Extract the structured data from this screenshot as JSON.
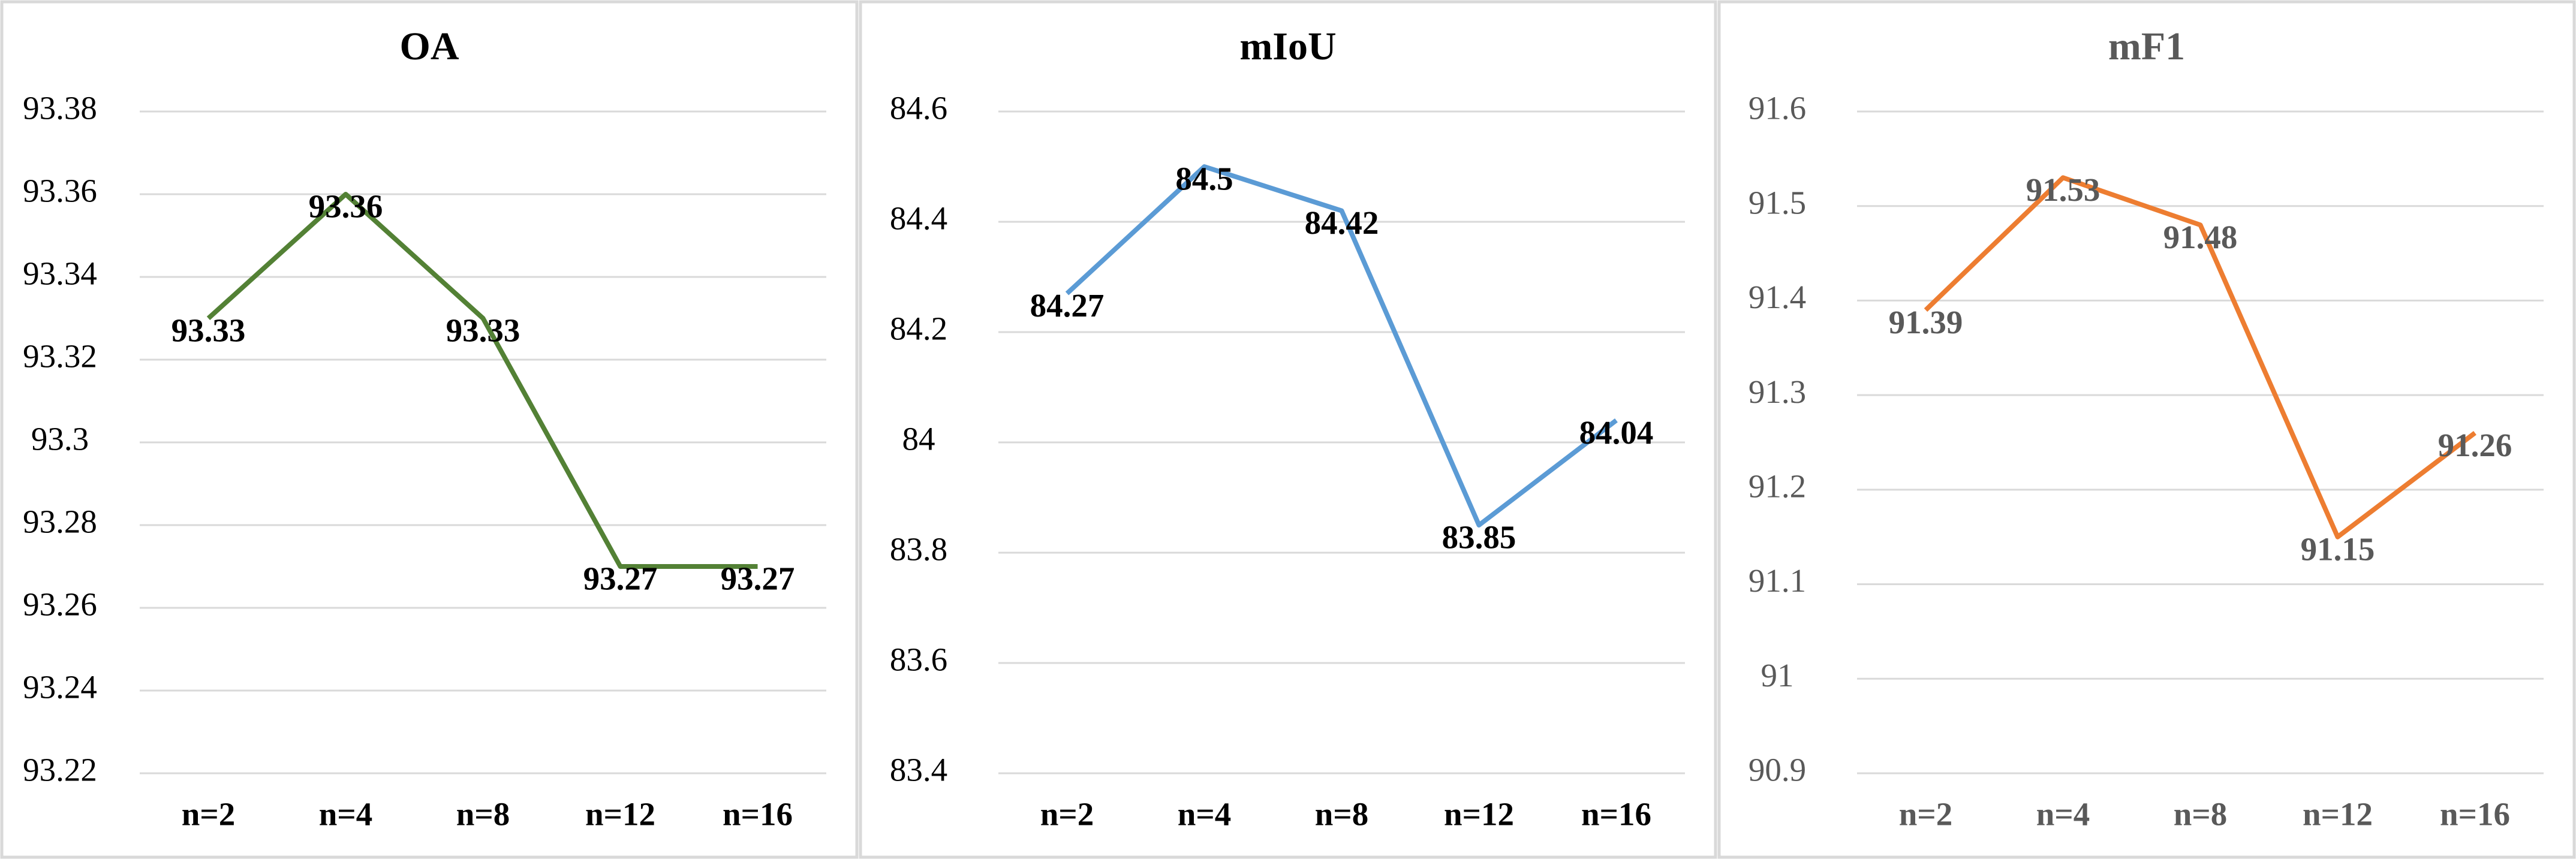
{
  "chart_data": [
    {
      "type": "line",
      "title": "OA",
      "categories": [
        "n=2",
        "n=4",
        "n=8",
        "n=12",
        "n=16"
      ],
      "series": [
        {
          "name": "OA",
          "color": "#538135",
          "values": [
            93.33,
            93.36,
            93.33,
            93.27,
            93.27
          ]
        }
      ],
      "ylim": [
        93.22,
        93.38
      ],
      "yticks": [
        93.22,
        93.24,
        93.26,
        93.28,
        93.3,
        93.32,
        93.34,
        93.36,
        93.38
      ],
      "grid": true,
      "text_color": "#000000"
    },
    {
      "type": "line",
      "title": "mIoU",
      "categories": [
        "n=2",
        "n=4",
        "n=8",
        "n=12",
        "n=16"
      ],
      "series": [
        {
          "name": "mIoU",
          "color": "#5b9bd5",
          "values": [
            84.27,
            84.5,
            84.42,
            83.85,
            84.04
          ]
        }
      ],
      "ylim": [
        83.4,
        84.6
      ],
      "yticks": [
        83.4,
        83.6,
        83.8,
        84,
        84.2,
        84.4,
        84.6
      ],
      "grid": true,
      "text_color": "#000000"
    },
    {
      "type": "line",
      "title": "mF1",
      "categories": [
        "n=2",
        "n=4",
        "n=8",
        "n=12",
        "n=16"
      ],
      "series": [
        {
          "name": "mF1",
          "color": "#ed7d31",
          "values": [
            91.39,
            91.53,
            91.48,
            91.15,
            91.26
          ]
        }
      ],
      "ylim": [
        90.9,
        91.6
      ],
      "yticks": [
        90.9,
        91,
        91.1,
        91.2,
        91.3,
        91.4,
        91.5,
        91.6
      ],
      "grid": true,
      "text_color": "#595959"
    }
  ]
}
